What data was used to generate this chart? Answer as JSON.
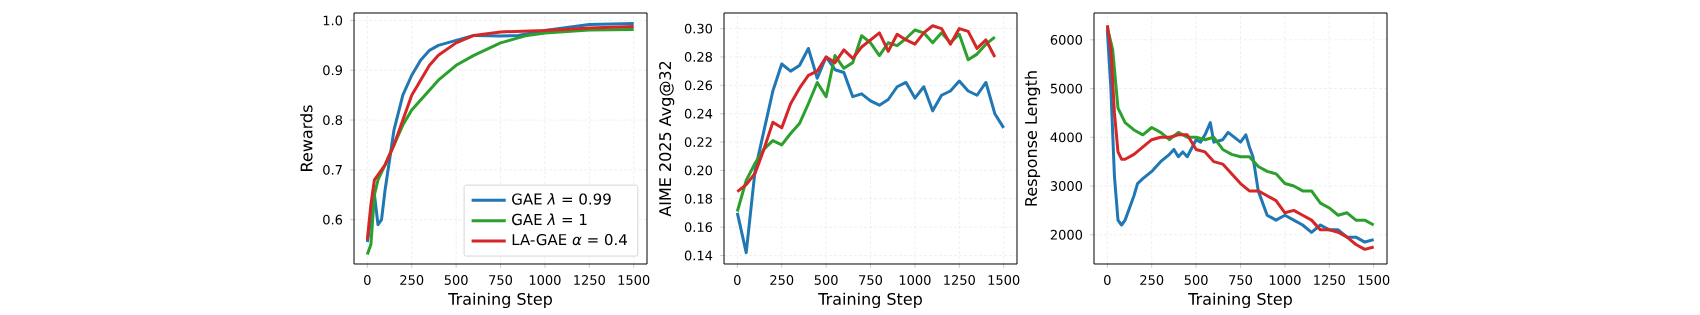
{
  "chart_data": [
    {
      "type": "line",
      "xlabel": "Training Step",
      "ylabel": "Rewards",
      "xlim": [
        -75,
        1575
      ],
      "ylim": [
        0.511,
        1.015
      ],
      "xticks": [
        0,
        250,
        500,
        750,
        1000,
        1250,
        1500
      ],
      "yticks": [
        0.6,
        0.7,
        0.8,
        0.9,
        {
          "value": 1,
          "label": "1.0"
        }
      ],
      "grid": true,
      "legend": "bottom right",
      "series": [
        {
          "name": "GAE *λ* = 0.99",
          "color": "#1f77b4",
          "x": [
            0,
            20,
            40,
            60,
            80,
            100,
            125,
            150,
            200,
            250,
            300,
            350,
            400,
            500,
            600,
            750,
            850,
            1000,
            1250,
            1500
          ],
          "values": [
            0.555,
            0.6,
            0.65,
            0.59,
            0.6,
            0.66,
            0.72,
            0.78,
            0.85,
            0.89,
            0.92,
            0.94,
            0.95,
            0.96,
            0.97,
            0.969,
            0.97,
            0.98,
            0.992,
            0.994
          ]
        },
        {
          "name": "GAE *λ* = 1",
          "color": "#2ca02c",
          "x": [
            0,
            20,
            40,
            60,
            100,
            150,
            200,
            250,
            300,
            400,
            500,
            600,
            750,
            900,
            1000,
            1250,
            1500
          ],
          "values": [
            0.53,
            0.55,
            0.65,
            0.68,
            0.71,
            0.75,
            0.79,
            0.82,
            0.84,
            0.88,
            0.91,
            0.93,
            0.955,
            0.97,
            0.975,
            0.981,
            0.982
          ]
        },
        {
          "name": "LA-GAE *α* = 0.4",
          "color": "#d62728",
          "x": [
            0,
            20,
            40,
            60,
            100,
            150,
            200,
            250,
            300,
            350,
            400,
            500,
            600,
            750,
            1000,
            1250,
            1500
          ],
          "values": [
            0.56,
            0.63,
            0.68,
            0.69,
            0.71,
            0.75,
            0.8,
            0.85,
            0.88,
            0.91,
            0.93,
            0.955,
            0.97,
            0.977,
            0.98,
            0.985,
            0.988
          ]
        }
      ]
    },
    {
      "type": "line",
      "xlabel": "Training Step",
      "ylabel": "AIME 2025 Avg@32",
      "xlim": [
        -75,
        1575
      ],
      "ylim": [
        0.134,
        0.311
      ],
      "xticks": [
        0,
        250,
        500,
        750,
        1000,
        1250,
        1500
      ],
      "yticks": [
        0.14,
        0.16,
        0.18,
        {
          "value": 0.2,
          "label": "0.20"
        },
        0.22,
        0.24,
        0.26,
        0.28,
        {
          "value": 0.3,
          "label": "0.30"
        }
      ],
      "grid": true,
      "series": [
        {
          "color": "#1f77b4",
          "x": [
            0,
            50,
            100,
            150,
            200,
            250,
            300,
            350,
            400,
            450,
            500,
            550,
            600,
            650,
            700,
            750,
            800,
            850,
            900,
            950,
            1000,
            1050,
            1100,
            1150,
            1200,
            1250,
            1300,
            1350,
            1400,
            1450,
            1500
          ],
          "values": [
            0.17,
            0.142,
            0.2,
            0.228,
            0.256,
            0.275,
            0.27,
            0.274,
            0.286,
            0.265,
            0.28,
            0.271,
            0.269,
            0.252,
            0.254,
            0.249,
            0.246,
            0.25,
            0.259,
            0.262,
            0.251,
            0.259,
            0.242,
            0.253,
            0.256,
            0.263,
            0.256,
            0.253,
            0.262,
            0.24,
            0.23
          ]
        },
        {
          "color": "#2ca02c",
          "x": [
            0,
            50,
            100,
            150,
            200,
            250,
            300,
            350,
            400,
            450,
            500,
            550,
            600,
            650,
            700,
            750,
            800,
            850,
            900,
            950,
            1000,
            1050,
            1100,
            1150,
            1200,
            1250,
            1300,
            1350,
            1400,
            1450
          ],
          "values": [
            0.171,
            0.193,
            0.205,
            0.215,
            0.221,
            0.218,
            0.226,
            0.233,
            0.247,
            0.262,
            0.252,
            0.281,
            0.272,
            0.276,
            0.295,
            0.29,
            0.281,
            0.29,
            0.288,
            0.293,
            0.299,
            0.297,
            0.29,
            0.297,
            0.29,
            0.296,
            0.278,
            0.282,
            0.289,
            0.294
          ]
        },
        {
          "color": "#d62728",
          "x": [
            0,
            50,
            100,
            150,
            200,
            250,
            300,
            350,
            400,
            450,
            500,
            550,
            600,
            650,
            700,
            750,
            800,
            850,
            900,
            950,
            1000,
            1050,
            1100,
            1150,
            1200,
            1250,
            1300,
            1350,
            1400,
            1450
          ],
          "values": [
            0.185,
            0.19,
            0.198,
            0.215,
            0.234,
            0.23,
            0.247,
            0.258,
            0.267,
            0.27,
            0.28,
            0.276,
            0.285,
            0.279,
            0.287,
            0.292,
            0.297,
            0.284,
            0.296,
            0.292,
            0.289,
            0.297,
            0.302,
            0.3,
            0.289,
            0.3,
            0.298,
            0.286,
            0.292,
            0.28
          ]
        }
      ]
    },
    {
      "type": "line",
      "xlabel": "Training Step",
      "ylabel": "Response Length",
      "xlim": [
        -75,
        1575
      ],
      "ylim": [
        1400,
        6550
      ],
      "xticks": [
        0,
        250,
        500,
        750,
        1000,
        1250,
        1500
      ],
      "yticks": [
        2000,
        3000,
        4000,
        5000,
        6000
      ],
      "grid": true,
      "series": [
        {
          "color": "#1f77b4",
          "x": [
            0,
            20,
            40,
            60,
            80,
            100,
            150,
            170,
            200,
            250,
            300,
            350,
            375,
            400,
            425,
            450,
            500,
            525,
            550,
            580,
            600,
            650,
            680,
            750,
            780,
            800,
            820,
            850,
            900,
            950,
            1000,
            1050,
            1100,
            1150,
            1200,
            1250,
            1300,
            1350,
            1400,
            1450,
            1500
          ],
          "values": [
            6200,
            5000,
            3200,
            2300,
            2200,
            2300,
            2800,
            3050,
            3150,
            3300,
            3500,
            3650,
            3750,
            3600,
            3700,
            3600,
            3950,
            3900,
            4050,
            4300,
            3900,
            3950,
            4100,
            3900,
            4050,
            3800,
            3600,
            2900,
            2400,
            2300,
            2400,
            2300,
            2200,
            2050,
            2200,
            2100,
            2100,
            1950,
            1950,
            1850,
            1900
          ]
        },
        {
          "color": "#2ca02c",
          "x": [
            0,
            30,
            60,
            100,
            150,
            200,
            250,
            300,
            350,
            400,
            450,
            500,
            550,
            600,
            650,
            700,
            750,
            800,
            850,
            900,
            950,
            1000,
            1050,
            1100,
            1150,
            1200,
            1250,
            1300,
            1350,
            1400,
            1450,
            1500
          ],
          "values": [
            6250,
            5800,
            4600,
            4300,
            4150,
            4050,
            4200,
            4100,
            3950,
            4100,
            4000,
            4000,
            3950,
            4000,
            3750,
            3650,
            3600,
            3600,
            3400,
            3300,
            3250,
            3050,
            3000,
            2900,
            2900,
            2650,
            2550,
            2400,
            2450,
            2300,
            2300,
            2200
          ]
        },
        {
          "color": "#d62728",
          "x": [
            0,
            20,
            40,
            60,
            80,
            100,
            150,
            200,
            250,
            300,
            350,
            400,
            450,
            500,
            550,
            600,
            650,
            700,
            750,
            800,
            850,
            900,
            950,
            1000,
            1050,
            1100,
            1150,
            1200,
            1250,
            1300,
            1350,
            1400,
            1450,
            1500
          ],
          "values": [
            6300,
            5800,
            4500,
            3700,
            3550,
            3550,
            3650,
            3800,
            3950,
            4000,
            4000,
            4050,
            4050,
            3750,
            3700,
            3500,
            3450,
            3250,
            3050,
            2900,
            2900,
            2800,
            2700,
            2450,
            2500,
            2400,
            2300,
            2100,
            2100,
            2050,
            1950,
            1800,
            1700,
            1750
          ]
        }
      ]
    }
  ]
}
